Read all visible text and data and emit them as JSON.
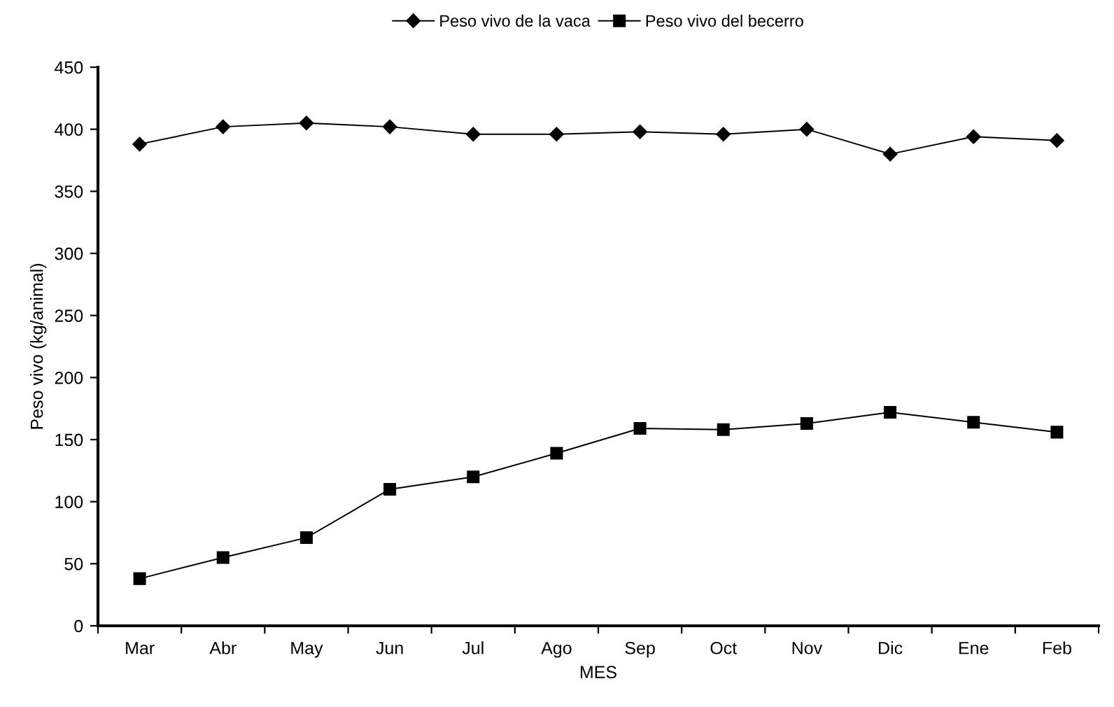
{
  "chart_data": {
    "type": "line",
    "xlabel": "MES",
    "ylabel": "Peso vivo (kg/animal)",
    "categories": [
      "Mar",
      "Abr",
      "May",
      "Jun",
      "Jul",
      "Ago",
      "Sep",
      "Oct",
      "Nov",
      "Dic",
      "Ene",
      "Feb"
    ],
    "series": [
      {
        "name": "Peso vivo de la vaca",
        "color": "#000000",
        "marker": "diamond",
        "values": [
          388,
          402,
          405,
          402,
          396,
          396,
          398,
          396,
          400,
          380,
          394,
          391
        ]
      },
      {
        "name": "Peso vivo del becerro",
        "color": "#000000",
        "marker": "square",
        "values": [
          38,
          55,
          71,
          110,
          120,
          139,
          159,
          158,
          163,
          172,
          164,
          156
        ]
      }
    ],
    "ylim": [
      0,
      450
    ],
    "yticks": [
      0,
      50,
      100,
      150,
      200,
      250,
      300,
      350,
      400,
      450
    ],
    "grid": false,
    "legend": "top",
    "line_style": "solid"
  }
}
